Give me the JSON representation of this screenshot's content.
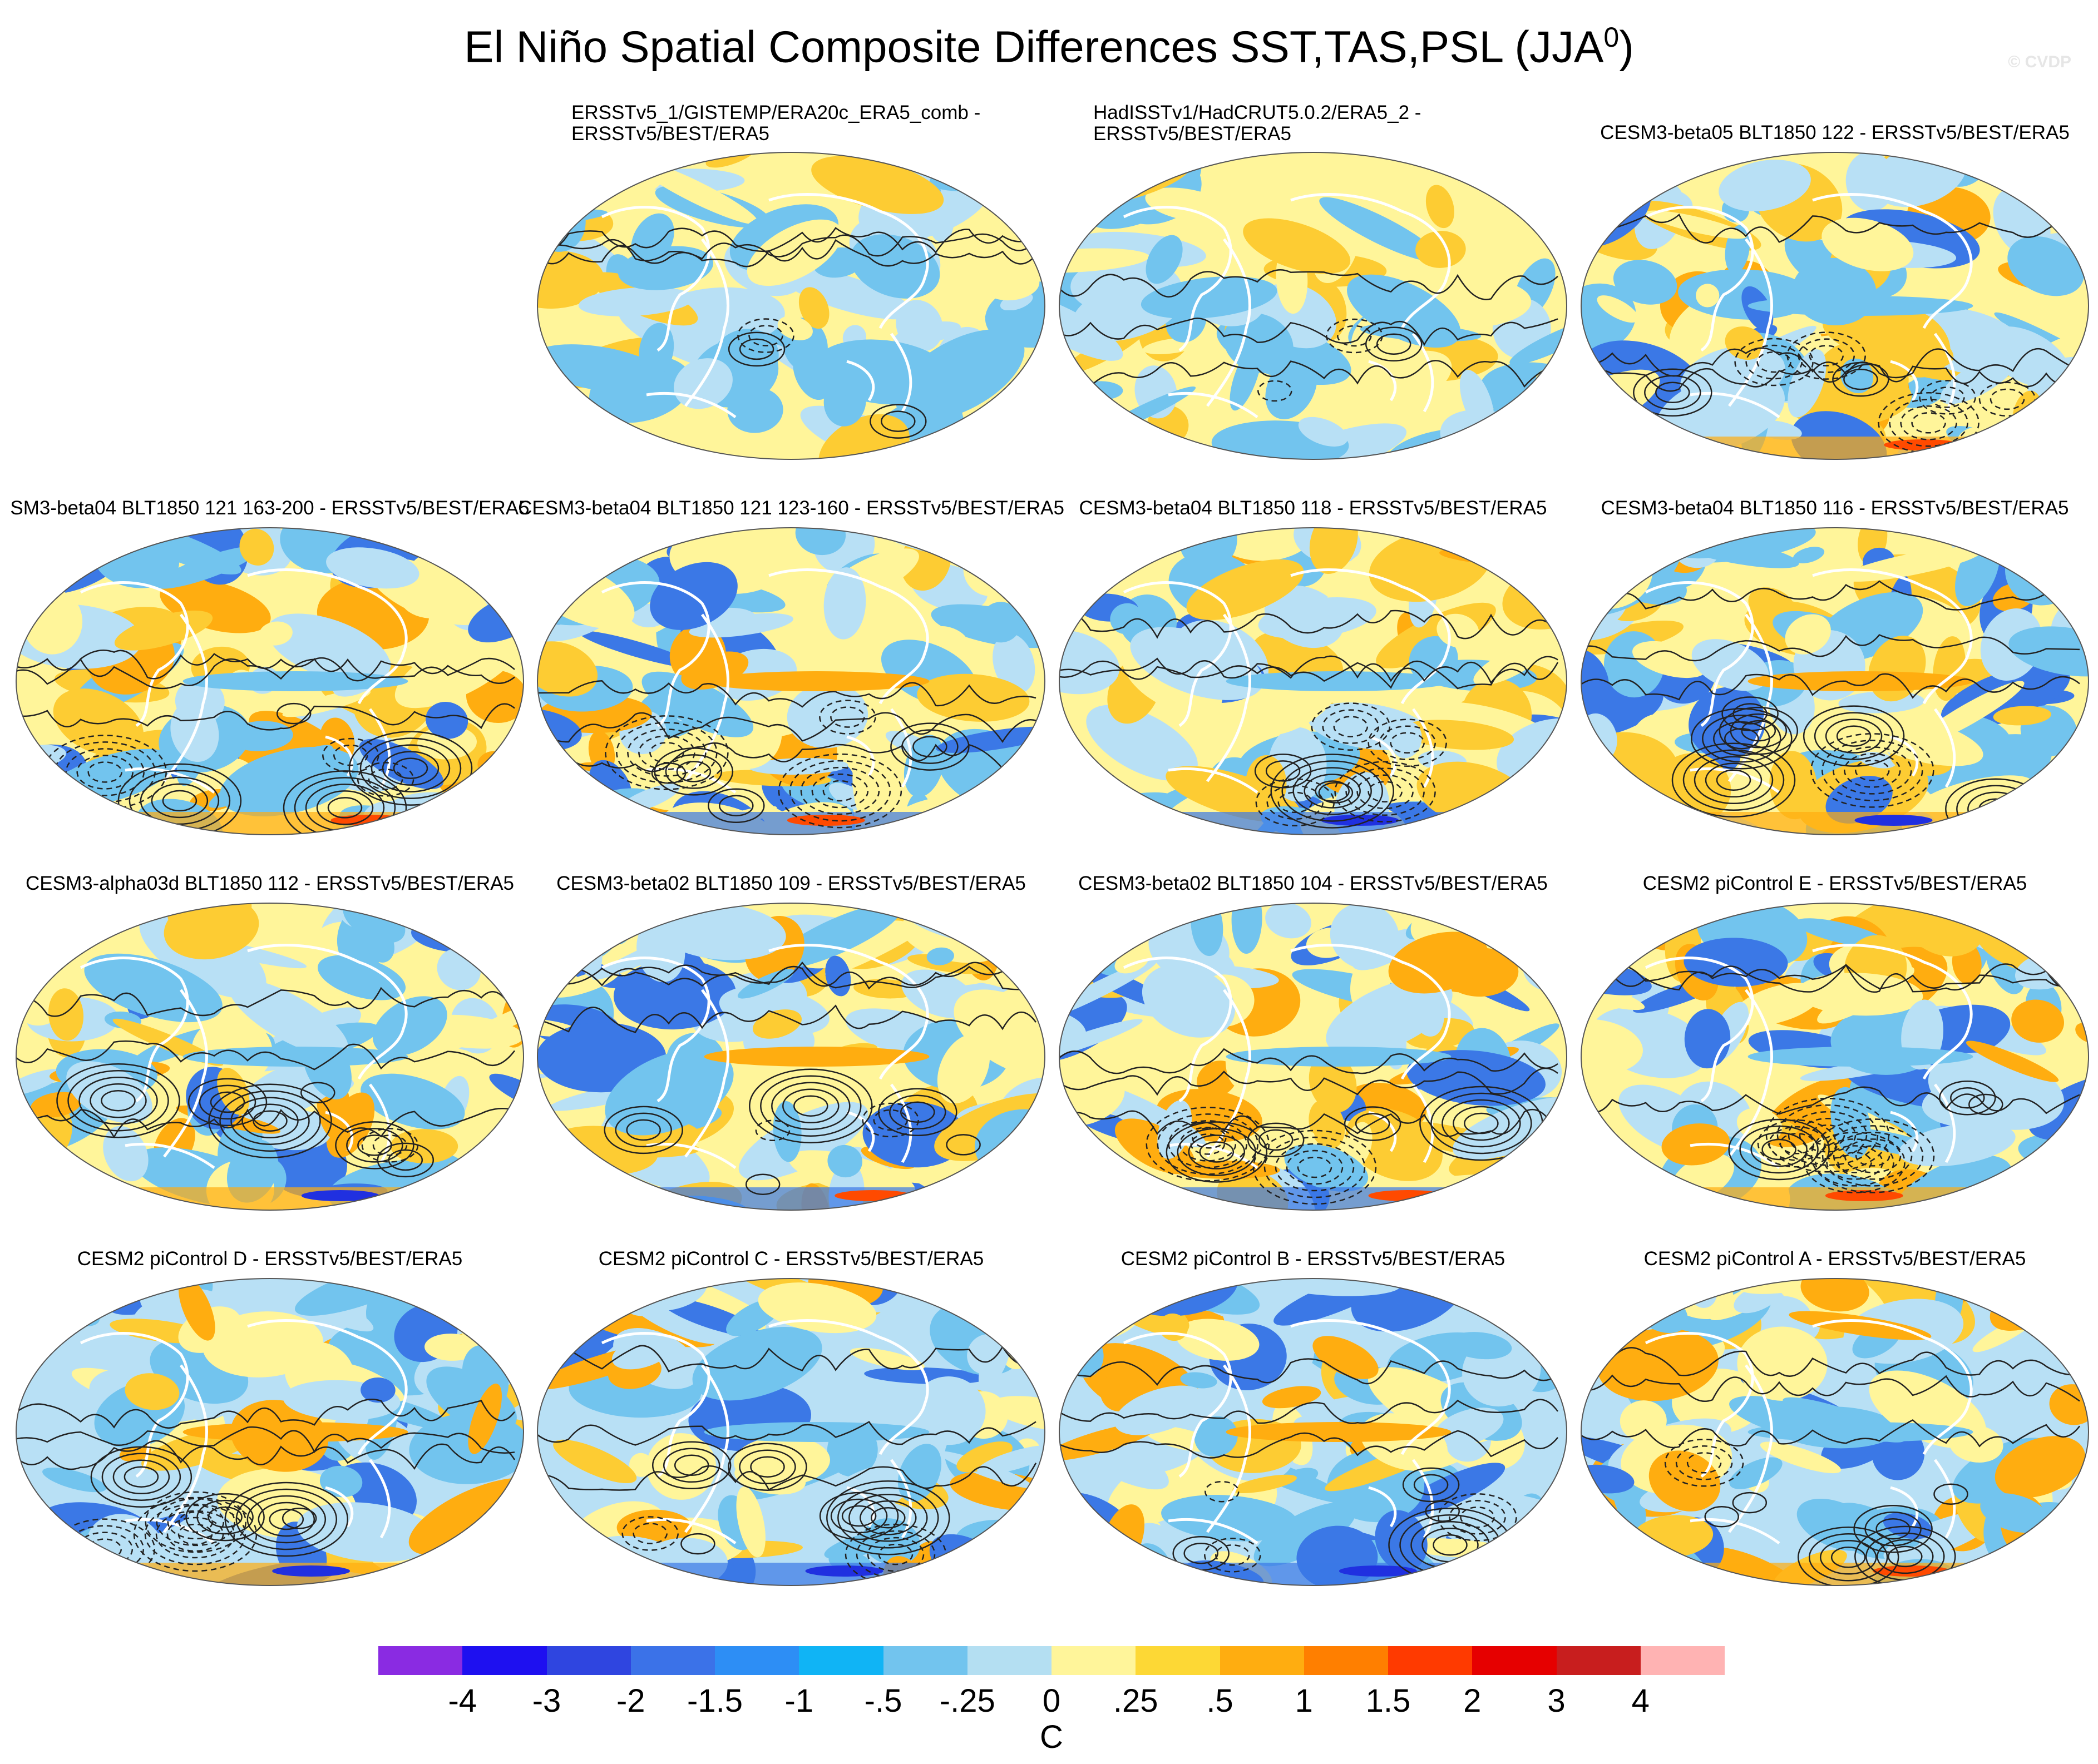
{
  "page": {
    "title": "El Niño Spatial Composite Differences SST,TAS,PSL (JJA",
    "title_superscript": "0",
    "title_close": ")",
    "watermark": "© CVDP"
  },
  "panels": [
    {
      "line1": "ERSSTv5_1/GISTEMP/ERA20c_ERA5_comb -",
      "line2": "ERSSTv5/BEST/ERA5"
    },
    {
      "line1": "HadISSTv1/HadCRUT5.0.2/ERA5_2 -",
      "line2": "ERSSTv5/BEST/ERA5"
    },
    {
      "line1": "CESM3-beta05 BLT1850 122 - ERSSTv5/BEST/ERA5",
      "line2": ""
    },
    {
      "line1": "SM3-beta04 BLT1850 121 163-200 - ERSSTv5/BEST/ERA5",
      "line2": ""
    },
    {
      "line1": "CESM3-beta04 BLT1850 121 123-160 - ERSSTv5/BEST/ERA5",
      "line2": ""
    },
    {
      "line1": "CESM3-beta04 BLT1850 118 - ERSSTv5/BEST/ERA5",
      "line2": ""
    },
    {
      "line1": "CESM3-beta04 BLT1850 116 - ERSSTv5/BEST/ERA5",
      "line2": ""
    },
    {
      "line1": "CESM3-alpha03d BLT1850 112 - ERSSTv5/BEST/ERA5",
      "line2": ""
    },
    {
      "line1": "CESM3-beta02 BLT1850 109 - ERSSTv5/BEST/ERA5",
      "line2": ""
    },
    {
      "line1": "CESM3-beta02 BLT1850 104 - ERSSTv5/BEST/ERA5",
      "line2": ""
    },
    {
      "line1": "CESM2 piControl E - ERSSTv5/BEST/ERA5",
      "line2": ""
    },
    {
      "line1": "CESM2 piControl D - ERSSTv5/BEST/ERA5",
      "line2": ""
    },
    {
      "line1": "CESM2 piControl C - ERSSTv5/BEST/ERA5",
      "line2": ""
    },
    {
      "line1": "CESM2 piControl B - ERSSTv5/BEST/ERA5",
      "line2": ""
    },
    {
      "line1": "CESM2 piControl A - ERSSTv5/BEST/ERA5",
      "line2": ""
    }
  ],
  "colorbar": {
    "unit": "C",
    "labels": [
      "-4",
      "-3",
      "-2",
      "-1.5",
      "-1",
      "-.5",
      "-.25",
      "0",
      ".25",
      ".5",
      "1",
      "1.5",
      "2",
      "3",
      "4"
    ],
    "colors": [
      "#8a2be2",
      "#1e10f0",
      "#2f45e0",
      "#3b72e8",
      "#2d8ef5",
      "#10b4f5",
      "#72c4ee",
      "#b4dff2",
      "#fff59a",
      "#fdd835",
      "#ffad10",
      "#ff7f00",
      "#ff3a00",
      "#e60000",
      "#c81e1e",
      "#ffb3b3"
    ]
  },
  "map_colors": {
    "ocean_base": "#b8e0f5",
    "warm_light": "#fff59a",
    "warm": "#fdcc33",
    "warm_strong": "#ffad10",
    "hot": "#ff4a00",
    "cool": "#72c4ee",
    "cold": "#3b78e6",
    "very_cold": "#2030e0",
    "coast": "#ffffff",
    "contour": "#222222"
  }
}
